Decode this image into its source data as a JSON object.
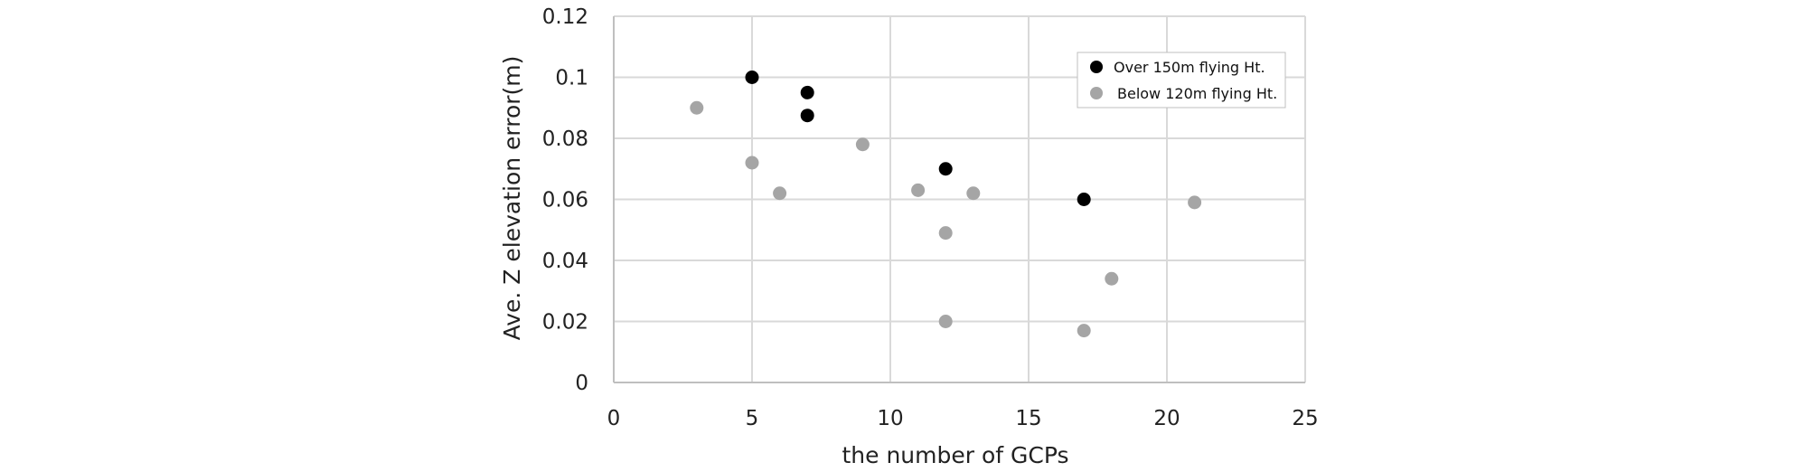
{
  "chart_data": {
    "type": "scatter",
    "xlabel": "the number of GCPs",
    "ylabel": "Ave. Z elevation error(m)",
    "xlim": [
      0,
      25
    ],
    "ylim": [
      0,
      0.12
    ],
    "x_ticks": [
      "0",
      "5",
      "10",
      "15",
      "20",
      "25"
    ],
    "y_ticks": [
      "0",
      "0.02",
      "0.04",
      "0.06",
      "0.08",
      "0.1",
      "0.12"
    ],
    "grid": true,
    "legend_position": "top-right",
    "series": [
      {
        "name": "Over 150m flying Ht.",
        "color": "#000000",
        "points": [
          {
            "x": 5,
            "y": 0.1
          },
          {
            "x": 7,
            "y": 0.095
          },
          {
            "x": 7,
            "y": 0.0875
          },
          {
            "x": 12,
            "y": 0.07
          },
          {
            "x": 17,
            "y": 0.06
          }
        ]
      },
      {
        "name": "Below 120m flying Ht.",
        "color": "#a5a5a5",
        "points": [
          {
            "x": 3,
            "y": 0.09
          },
          {
            "x": 5,
            "y": 0.072
          },
          {
            "x": 6,
            "y": 0.062
          },
          {
            "x": 9,
            "y": 0.078
          },
          {
            "x": 11,
            "y": 0.063
          },
          {
            "x": 12,
            "y": 0.049
          },
          {
            "x": 12,
            "y": 0.02
          },
          {
            "x": 13,
            "y": 0.062
          },
          {
            "x": 17,
            "y": 0.017
          },
          {
            "x": 18,
            "y": 0.034
          },
          {
            "x": 21,
            "y": 0.059
          }
        ]
      }
    ]
  }
}
